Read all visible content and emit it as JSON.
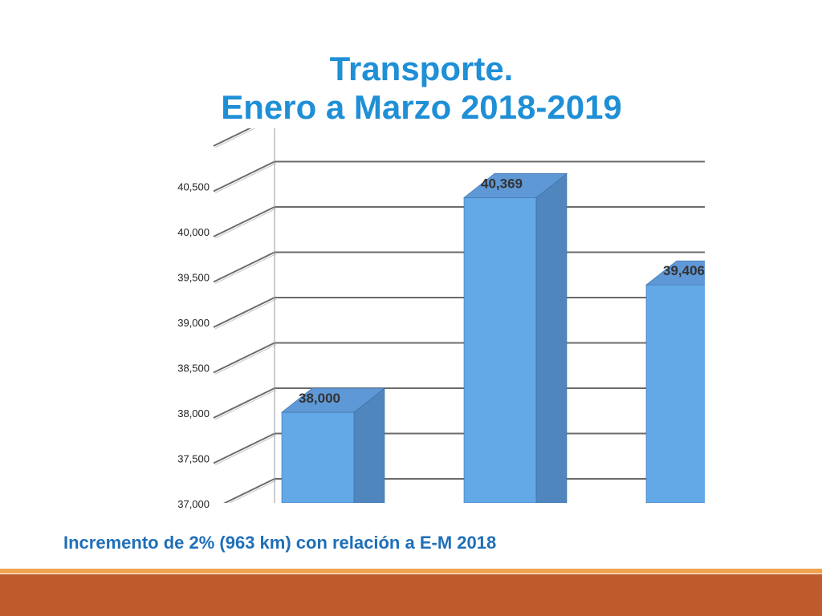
{
  "slide": {
    "title_line1": "Transporte.",
    "title_line2": "Enero a Marzo 2018-2019",
    "footnote": "Incremento de 2% (963 km) con relación a E-M 2018",
    "colors": {
      "title": "#1f8fd6",
      "footnote": "#1f6fb8",
      "bar_front": "#63a9e8",
      "bar_side": "#4f86be",
      "bar_top": "#5f98d6",
      "footer_line": "#f0a24e",
      "footer_bar": "#bf5a2c"
    }
  },
  "chart_data": {
    "type": "bar",
    "style": "3d-column",
    "categories": [
      "",
      "",
      ""
    ],
    "values": [
      38000,
      40369,
      39406
    ],
    "data_labels": [
      "38,000",
      "40,369",
      "39,406"
    ],
    "ylim": [
      37000,
      41000
    ],
    "y_ticks": [
      37000,
      37500,
      38000,
      38500,
      39000,
      39500,
      40000,
      40500
    ],
    "y_tick_labels": [
      "37,000",
      "37,500",
      "38,000",
      "38,500",
      "39,000",
      "39,500",
      "40,000",
      "40,500"
    ],
    "grid": true,
    "legend": "none"
  }
}
